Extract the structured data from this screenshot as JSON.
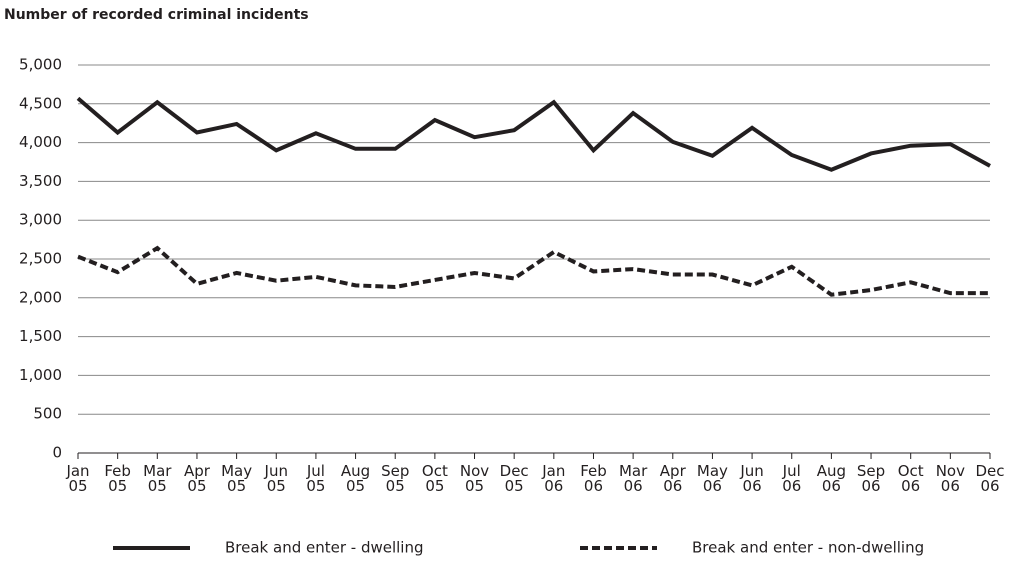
{
  "chart_data": {
    "type": "line",
    "title": "Number of recorded criminal incidents",
    "categories": [
      "Jan 05",
      "Feb 05",
      "Mar 05",
      "Apr 05",
      "May 05",
      "Jun 05",
      "Jul 05",
      "Aug 05",
      "Sep 05",
      "Oct 05",
      "Nov 05",
      "Dec 05",
      "Jan 06",
      "Feb 06",
      "Mar 06",
      "Apr 06",
      "May 06",
      "Jun 06",
      "Jul 06",
      "Aug 06",
      "Sep 06",
      "Oct 06",
      "Nov 06",
      "Dec 06"
    ],
    "series": [
      {
        "name": "Break and enter - dwelling",
        "color": "#231f20",
        "line_style": "solid",
        "values": [
          4570,
          4130,
          4520,
          4130,
          4240,
          3900,
          4120,
          3920,
          3920,
          4290,
          4070,
          4160,
          4520,
          3900,
          4380,
          4010,
          3830,
          4190,
          3840,
          3650,
          3860,
          3960,
          3980,
          3700
        ]
      },
      {
        "name": "Break and enter - non-dwelling",
        "color": "#231f20",
        "line_style": "dashed",
        "values": [
          2530,
          2330,
          2640,
          2180,
          2320,
          2220,
          2270,
          2160,
          2140,
          2230,
          2320,
          2250,
          2590,
          2340,
          2370,
          2300,
          2300,
          2160,
          2400,
          2040,
          2100,
          2200,
          2060,
          2060
        ]
      }
    ],
    "ylim": [
      0,
      5000
    ],
    "yticks": [
      0,
      500,
      {
        "value": 1000,
        "label": "1,000"
      },
      {
        "value": 1500,
        "label": "1,500"
      },
      {
        "value": 2000,
        "label": "2,000"
      },
      {
        "value": 2500,
        "label": "2,500"
      },
      {
        "value": 3000,
        "label": "3,000"
      },
      {
        "value": 3500,
        "label": "3,500"
      },
      {
        "value": 4000,
        "label": "4,000"
      },
      {
        "value": 4500,
        "label": "4,500"
      },
      {
        "value": 5000,
        "label": "5,000"
      }
    ],
    "grid": true,
    "legend": "bottom"
  }
}
